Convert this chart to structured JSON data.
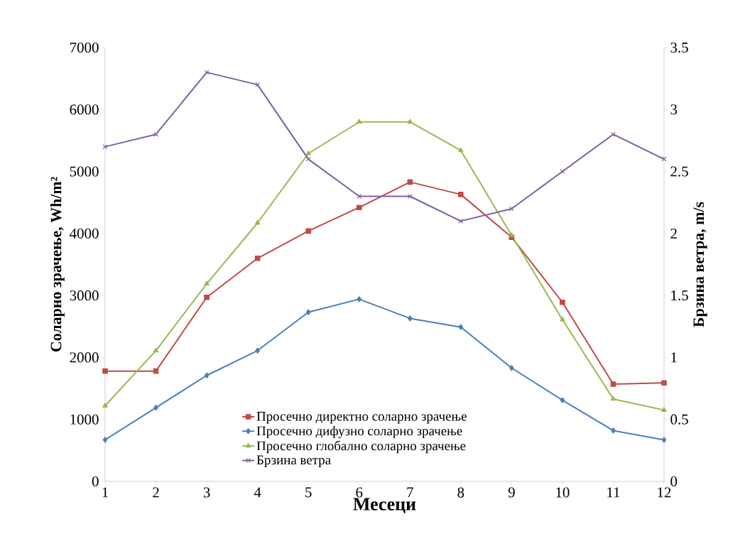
{
  "chart_data": {
    "type": "line",
    "xlabel": "Месеци",
    "ylabel": "Соларно зрачење, Wh/m²",
    "y2label": "Брзина ветра, m/s",
    "x": [
      1,
      2,
      3,
      4,
      5,
      6,
      7,
      8,
      9,
      10,
      11,
      12
    ],
    "xlim": [
      1,
      12
    ],
    "xticks": [
      1,
      2,
      3,
      4,
      5,
      6,
      7,
      8,
      9,
      10,
      11,
      12
    ],
    "ylim": [
      0,
      7000
    ],
    "yticks": [
      0,
      1000,
      2000,
      3000,
      4000,
      5000,
      6000,
      7000
    ],
    "y2lim": [
      0,
      3.5
    ],
    "y2ticks": [
      0,
      0.5,
      1,
      1.5,
      2,
      2.5,
      3,
      3.5
    ],
    "legend": "bottom",
    "series": [
      {
        "name": "Просечно директно соларно зрачење",
        "color": "#be4b48",
        "marker": "square",
        "values": [
          1780,
          1780,
          2970,
          3600,
          4040,
          4420,
          4830,
          4630,
          3940,
          2890,
          1570,
          1590
        ]
      },
      {
        "name": "Просечно дифузно соларно зрачење",
        "color": "#4a7ebb",
        "marker": "diamond",
        "values": [
          670,
          1190,
          1710,
          2110,
          2730,
          2940,
          2630,
          2490,
          1830,
          1310,
          820,
          670
        ]
      },
      {
        "name": "Просечно глобално соларно зрачење",
        "color": "#98b954",
        "marker": "triangle",
        "values": [
          1220,
          2110,
          3190,
          4170,
          5290,
          5800,
          5800,
          5340,
          3970,
          2610,
          1330,
          1150
        ]
      },
      {
        "name": "Брзина ветра",
        "color": "#7d60a0",
        "marker": "cross",
        "axis": "y2",
        "values": [
          2.7,
          2.8,
          3.3,
          3.2,
          2.6,
          2.3,
          2.3,
          2.1,
          2.2,
          2.5,
          2.8,
          2.6
        ]
      }
    ]
  }
}
